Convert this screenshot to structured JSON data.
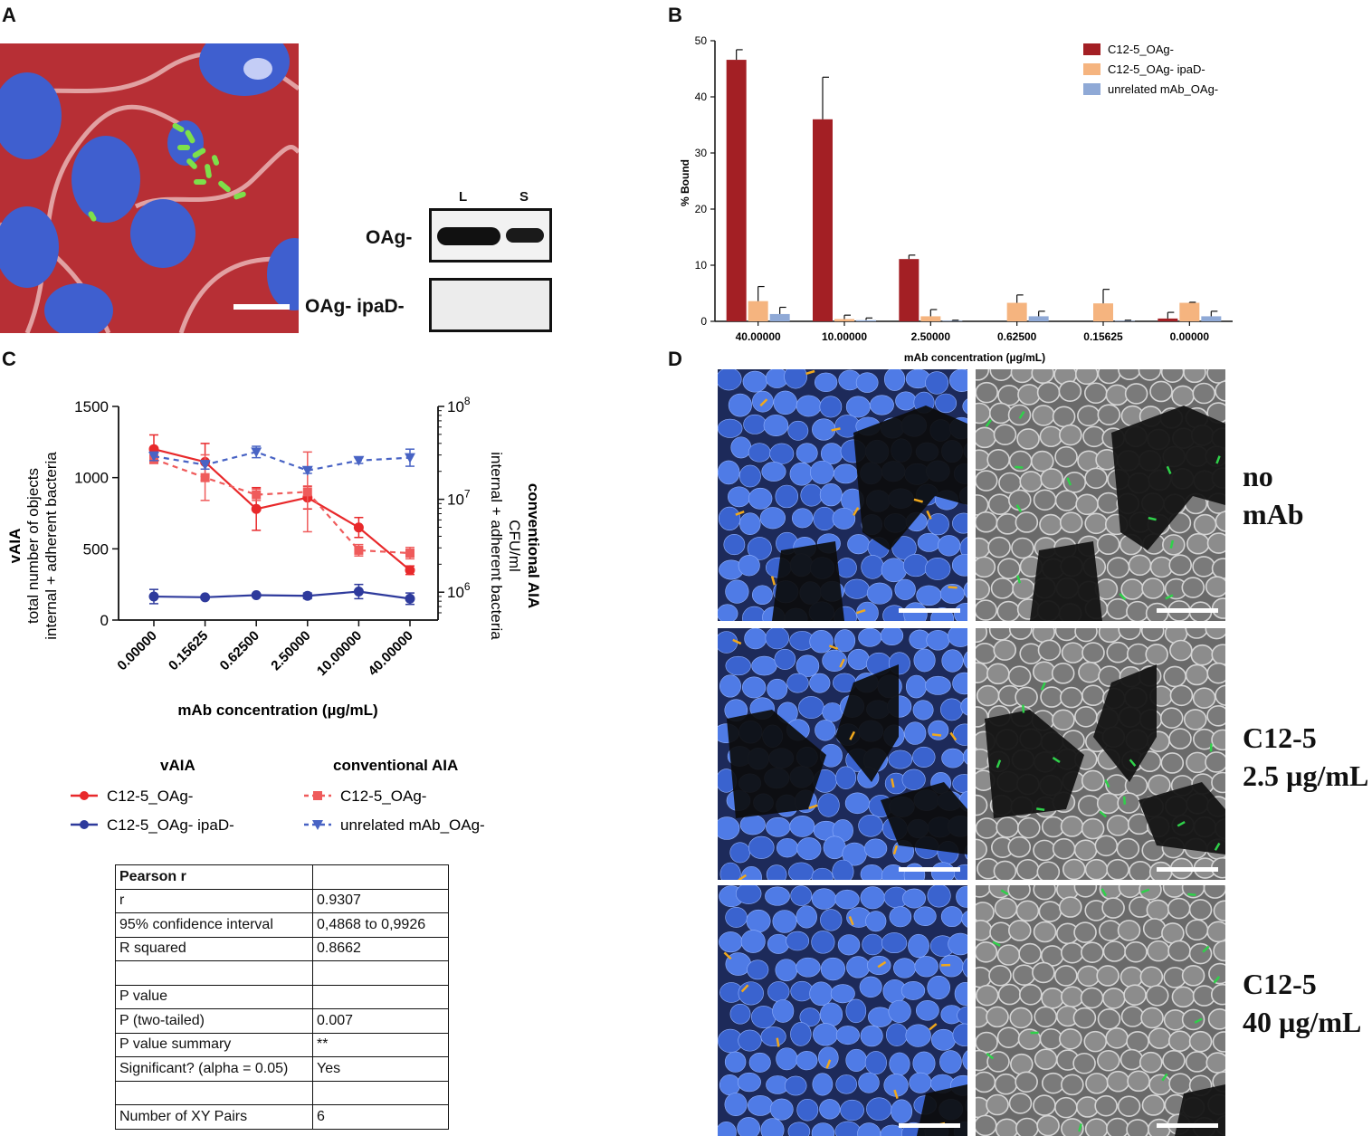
{
  "panels": {
    "a": "A",
    "b": "B",
    "c": "C",
    "d": "D"
  },
  "panel_a": {
    "lane_labels": [
      "L",
      "S"
    ],
    "blot_labels": [
      "OAg-",
      "OAg- ipaD-"
    ]
  },
  "panel_b": {
    "legend": [
      "C12-5_OAg-",
      "C12-5_OAg- ipaD-",
      "unrelated mAb_OAg-"
    ]
  },
  "panel_c": {
    "legend_headers": [
      "vAIA",
      "conventional AIA"
    ],
    "legend": [
      "C12-5_OAg-",
      "C12-5_OAg- ipaD-",
      "C12-5_OAg-",
      "unrelated mAb_OAg-"
    ]
  },
  "table": {
    "header": "Pearson r",
    "rows": [
      [
        "r",
        "0.9307"
      ],
      [
        "95% confidence interval",
        "0,4868 to 0,9926"
      ],
      [
        "R squared",
        "0.8662"
      ],
      [
        "",
        ""
      ],
      [
        "P value",
        ""
      ],
      [
        "P (two-tailed)",
        "0.007"
      ],
      [
        "P value summary",
        "**"
      ],
      [
        "Significant? (alpha = 0.05)",
        "Yes"
      ],
      [
        "",
        ""
      ],
      [
        "Number of XY Pairs",
        "6"
      ]
    ]
  },
  "panel_d": {
    "row_labels": [
      [
        "no",
        "mAb"
      ],
      [
        "C12-5",
        "2.5 µg/mL"
      ],
      [
        "C12-5",
        "40 µg/mL"
      ]
    ]
  },
  "colors": {
    "dark_red": "#a31f24",
    "orange": "#f5b47f",
    "light_blue": "#8fa9d6",
    "red": "#e8292b",
    "light_red": "#ef5b5b",
    "navy": "#2e3a9c",
    "blue_dashed": "#4863c4",
    "nuclei": "#3f6fd8",
    "membrane": "#d23c3c"
  },
  "chart_data": [
    {
      "type": "bar",
      "panel": "B",
      "title": "",
      "xlabel": "mAb concentration (µg/mL)",
      "ylabel": "% Bound",
      "ylim": [
        0,
        50
      ],
      "yticks": [
        0,
        10,
        20,
        30,
        40,
        50
      ],
      "categories": [
        "40.00000",
        "10.00000",
        "2.50000",
        "0.62500",
        "0.15625",
        "0.00000"
      ],
      "legend_position": "top-right",
      "series": [
        {
          "name": "C12-5_OAg-",
          "color": "#a31f24",
          "values": [
            46.6,
            36.0,
            11.1,
            0,
            0,
            0.5
          ],
          "errors": [
            1.8,
            7.5,
            0.7,
            0,
            0,
            1.1
          ]
        },
        {
          "name": "C12-5_OAg- ipaD-",
          "color": "#f5b47f",
          "values": [
            3.6,
            0.4,
            0.9,
            3.3,
            3.2,
            3.3
          ],
          "errors": [
            2.6,
            0.7,
            1.2,
            1.4,
            2.5,
            0.1
          ]
        },
        {
          "name": "unrelated mAb_OAg-",
          "color": "#8fa9d6",
          "values": [
            1.3,
            0.2,
            0.1,
            0.9,
            0.1,
            0.9
          ],
          "errors": [
            1.2,
            0.4,
            0.1,
            0.9,
            0.1,
            0.9
          ]
        }
      ]
    },
    {
      "type": "line",
      "panel": "C",
      "title": "",
      "xlabel": "mAb concentration (µg/mL)",
      "ylabel_left": [
        "vAIA",
        "total number of objects",
        "internal + adherent bacteria"
      ],
      "ylabel_right": [
        "conventional AIA",
        "CFU/ml",
        "internal + adherent bacteria"
      ],
      "categories": [
        "0.00000",
        "0.15625",
        "0.62500",
        "2.50000",
        "10.00000",
        "40.00000"
      ],
      "ylim_left": [
        0,
        1500
      ],
      "yticks_left": [
        0,
        500,
        1000,
        1500
      ],
      "ylim_right_log10": [
        5.7,
        8
      ],
      "yticks_right": [
        "10^6",
        "10^7",
        "10^8"
      ],
      "series": [
        {
          "name": "C12-5_OAg-",
          "group": "vAIA",
          "axis": "left",
          "style": "solid",
          "marker": "circle",
          "color": "#e8292b",
          "values": [
            1200,
            1110,
            780,
            860,
            650,
            350
          ],
          "errors": [
            100,
            130,
            150,
            80,
            70,
            30
          ]
        },
        {
          "name": "C12-5_OAg- ipaD-",
          "group": "vAIA",
          "axis": "left",
          "style": "solid",
          "marker": "circle",
          "color": "#2e3a9c",
          "values": [
            165,
            160,
            175,
            170,
            200,
            150
          ],
          "errors": [
            50,
            10,
            10,
            20,
            50,
            40
          ]
        },
        {
          "name": "C12-5_OAg-",
          "group": "conventional AIA",
          "axis": "right",
          "style": "dashed",
          "marker": "square",
          "color": "#ef5b5b",
          "values": [
            1130,
            1000,
            880,
            900,
            490,
            470
          ],
          "errors": [
            30,
            160,
            40,
            280,
            40,
            40
          ]
        },
        {
          "name": "unrelated mAb_OAg-",
          "group": "conventional AIA",
          "axis": "right",
          "style": "dashed",
          "marker": "triangle-down",
          "color": "#4863c4",
          "values": [
            1150,
            1090,
            1180,
            1050,
            1120,
            1140
          ],
          "errors": [
            30,
            30,
            40,
            20,
            20,
            60
          ]
        }
      ]
    }
  ]
}
